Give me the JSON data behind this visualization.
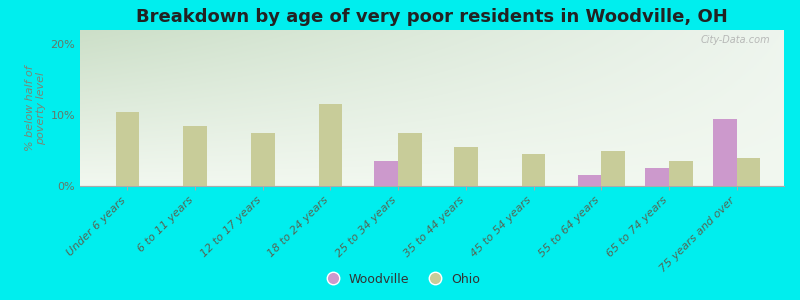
{
  "title": "Breakdown by age of very poor residents in Woodville, OH",
  "ylabel": "% below half of\npoverty level",
  "categories": [
    "Under 6 years",
    "6 to 11 years",
    "12 to 17 years",
    "18 to 24 years",
    "25 to 34 years",
    "35 to 44 years",
    "45 to 54 years",
    "55 to 64 years",
    "65 to 74 years",
    "75 years and over"
  ],
  "woodville_values": [
    0,
    0,
    0,
    0,
    3.5,
    0,
    0,
    1.5,
    2.5,
    9.5
  ],
  "ohio_values": [
    10.5,
    8.5,
    7.5,
    11.5,
    7.5,
    5.5,
    4.5,
    5.0,
    3.5,
    4.0
  ],
  "woodville_color": "#cc99cc",
  "ohio_color": "#c8cc99",
  "background_color": "#00eeee",
  "plot_bg_color_topleft": "#ddeedd",
  "plot_bg_color_topright": "#eef5ee",
  "plot_bg_color_bottom": "#f5f8f0",
  "ylim": [
    0,
    22
  ],
  "yticks": [
    0,
    10,
    20
  ],
  "ytick_labels": [
    "0%",
    "10%",
    "20%"
  ],
  "bar_width": 0.35,
  "title_fontsize": 13,
  "axis_label_fontsize": 8,
  "tick_fontsize": 8,
  "watermark": "City-Data.com"
}
